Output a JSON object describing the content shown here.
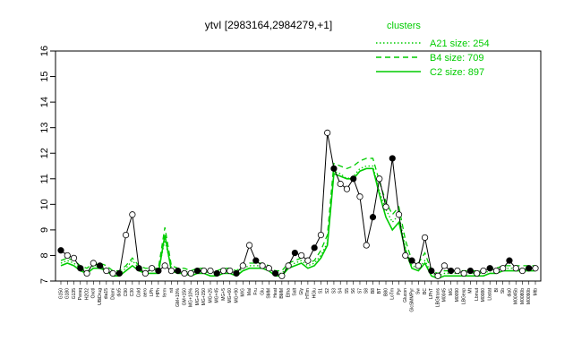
{
  "chart_data": {
    "type": "line",
    "title": "ytvI [2983164,2984279,+1]",
    "xlabel": "",
    "ylabel": "",
    "ylim": [
      7,
      16
    ],
    "yticks": [
      7,
      8,
      9,
      10,
      11,
      12,
      13,
      14,
      15,
      16
    ],
    "grid": false,
    "legend": {
      "title": "clusters",
      "placement": "top-right",
      "color": "#00cc00",
      "entries": [
        {
          "label": "A21 size: 254",
          "style": "dotted"
        },
        {
          "label": "B4 size: 709",
          "style": "dashed"
        },
        {
          "label": "C2 size: 897",
          "style": "solid"
        }
      ]
    },
    "categories": [
      "G150",
      "G180",
      "G135",
      "Paraq",
      "H2O2",
      "Oxctl",
      "UBiDrug",
      "dia15",
      "Diami",
      "dia5",
      "C90",
      "C30",
      "Cold",
      "aero",
      "LPh",
      "HPh",
      "ferm",
      "nit",
      "GM+10%",
      "GM+150",
      "MG+10%",
      "MG+120",
      "MG+150",
      "MG+25",
      "MG+45",
      "MG+5",
      "MG+60",
      "MG+90",
      "M/G",
      "Mal",
      "Fru",
      "Glu",
      "SMM",
      "Heat",
      "BMM",
      "Etha",
      "Salt",
      "Gly",
      "HTim",
      "HGlu",
      "S1",
      "S2",
      "S3",
      "S4",
      "S5",
      "S6",
      "S7",
      "S8",
      "B8",
      "BT",
      "B80",
      "LoTm",
      "Pyr",
      "Glucon",
      "GlcSMMPyr",
      "Sw",
      "BC",
      "LPhT",
      "LBGtrans",
      "M0045",
      "MG",
      "M0090",
      "LBGexp",
      "Mt",
      "Lbmut",
      "M0080",
      "Lbstat",
      "Bl",
      "Sb",
      "dia0",
      "M0045b",
      "M0080b",
      "M0090b",
      "Mtb"
    ],
    "series": [
      {
        "name": "A21",
        "style": "dotted",
        "color": "#00cc00",
        "values": [
          7.7,
          7.8,
          7.7,
          7.5,
          7.4,
          7.6,
          7.6,
          7.5,
          7.3,
          7.3,
          7.5,
          7.8,
          7.5,
          7.4,
          7.4,
          7.4,
          8.6,
          7.5,
          7.4,
          7.4,
          7.3,
          7.4,
          7.4,
          7.3,
          7.3,
          7.4,
          7.4,
          7.3,
          7.5,
          7.6,
          7.6,
          7.6,
          7.5,
          7.3,
          7.3,
          7.6,
          7.7,
          7.8,
          7.6,
          7.7,
          8.0,
          8.5,
          11.3,
          11.2,
          11.0,
          11.1,
          11.4,
          11.5,
          11.5,
          10.5,
          9.8,
          9.3,
          9.6,
          8.3,
          7.6,
          7.5,
          7.8,
          7.3,
          7.2,
          7.3,
          7.3,
          7.3,
          7.3,
          7.3,
          7.3,
          7.3,
          7.4,
          7.4,
          7.5,
          7.5,
          7.5,
          7.5,
          7.5,
          7.5
        ]
      },
      {
        "name": "B4",
        "style": "dashed",
        "color": "#00cc00",
        "values": [
          7.8,
          7.9,
          7.8,
          7.6,
          7.5,
          7.7,
          7.7,
          7.6,
          7.4,
          7.4,
          7.6,
          7.9,
          7.6,
          7.5,
          7.5,
          7.5,
          9.1,
          7.6,
          7.5,
          7.5,
          7.4,
          7.5,
          7.5,
          7.4,
          7.4,
          7.5,
          7.5,
          7.4,
          7.6,
          7.7,
          7.7,
          7.7,
          7.6,
          7.4,
          7.4,
          7.7,
          7.8,
          7.9,
          7.7,
          7.8,
          8.2,
          8.8,
          11.6,
          11.5,
          11.4,
          11.5,
          11.7,
          11.8,
          11.8,
          10.9,
          10.1,
          9.6,
          9.9,
          8.6,
          7.8,
          7.7,
          8.1,
          7.4,
          7.3,
          7.4,
          7.4,
          7.4,
          7.4,
          7.4,
          7.4,
          7.4,
          7.5,
          7.5,
          7.6,
          7.6,
          7.6,
          7.6,
          7.6,
          7.6
        ]
      },
      {
        "name": "C2",
        "style": "solid",
        "color": "#00cc00",
        "values": [
          7.6,
          7.7,
          7.6,
          7.4,
          7.3,
          7.5,
          7.5,
          7.4,
          7.2,
          7.2,
          7.4,
          7.6,
          7.4,
          7.3,
          7.3,
          7.3,
          8.8,
          7.4,
          7.3,
          7.3,
          7.2,
          7.3,
          7.3,
          7.2,
          7.2,
          7.3,
          7.3,
          7.2,
          7.4,
          7.5,
          7.5,
          7.5,
          7.4,
          7.2,
          7.2,
          7.5,
          7.6,
          7.7,
          7.5,
          7.6,
          7.9,
          8.4,
          11.2,
          11.1,
          11.0,
          11.0,
          11.3,
          11.4,
          11.4,
          10.4,
          9.5,
          9.0,
          9.3,
          8.2,
          7.5,
          7.4,
          7.7,
          7.2,
          7.1,
          7.2,
          7.2,
          7.2,
          7.2,
          7.2,
          7.2,
          7.2,
          7.3,
          7.3,
          7.4,
          7.4,
          7.4,
          7.4,
          7.4,
          7.4
        ]
      },
      {
        "name": "ytvI",
        "style": "points",
        "color": "#000000",
        "values": [
          8.2,
          8.0,
          7.9,
          7.5,
          7.3,
          7.7,
          7.6,
          7.4,
          7.3,
          7.3,
          8.8,
          9.6,
          7.5,
          7.3,
          7.5,
          7.4,
          7.6,
          7.4,
          7.4,
          7.3,
          7.3,
          7.4,
          7.4,
          7.4,
          7.3,
          7.4,
          7.4,
          7.3,
          7.6,
          8.4,
          7.8,
          7.6,
          7.5,
          7.3,
          7.2,
          7.6,
          8.1,
          8.0,
          7.8,
          8.3,
          8.8,
          12.8,
          11.4,
          10.8,
          10.6,
          11.0,
          10.3,
          8.4,
          9.5,
          11.0,
          9.9,
          11.8,
          9.6,
          8.0,
          7.8,
          7.6,
          8.7,
          7.4,
          7.2,
          7.6,
          7.4,
          7.4,
          7.3,
          7.4,
          7.3,
          7.4,
          7.5,
          7.4,
          7.5,
          7.8,
          7.5,
          7.4,
          7.5,
          7.5
        ]
      }
    ]
  }
}
